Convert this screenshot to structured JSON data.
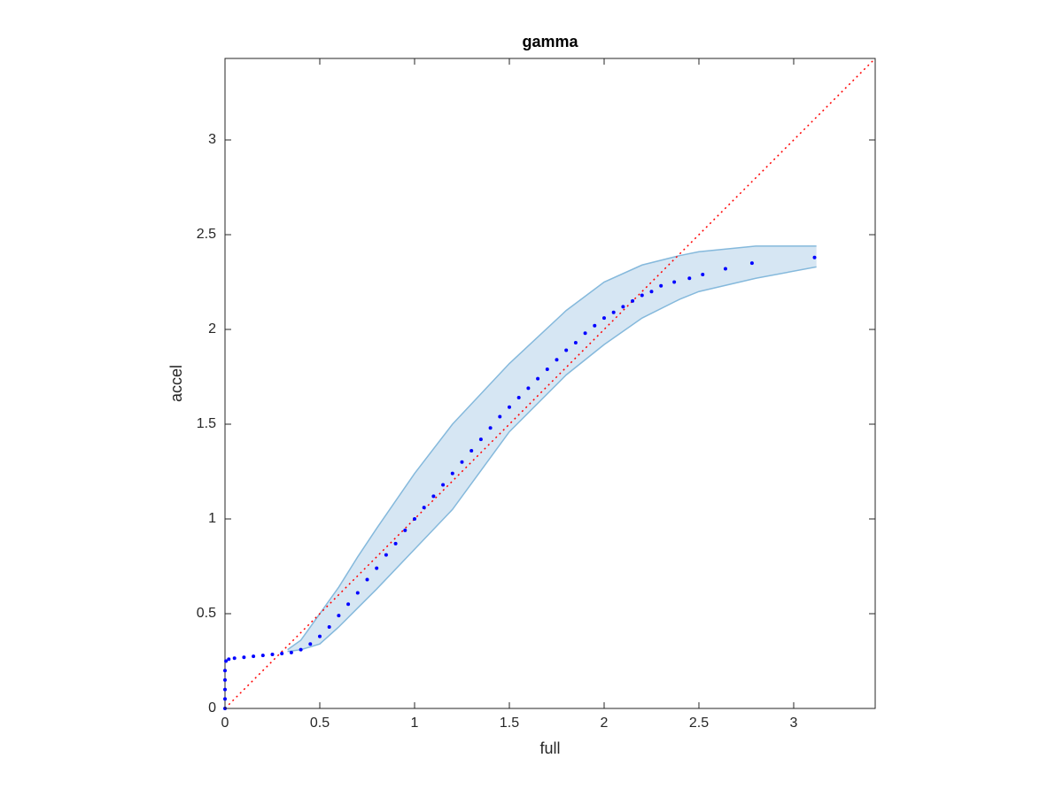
{
  "chart_data": {
    "type": "scatter",
    "title": "gamma",
    "x_label": "full",
    "y_label": "accel",
    "xlim": [
      0,
      3.43
    ],
    "ylim": [
      0,
      3.43
    ],
    "xticks": [
      0,
      0.5,
      1,
      1.5,
      2,
      2.5,
      3
    ],
    "yticks": [
      0,
      0.5,
      1,
      1.5,
      2,
      2.5,
      3
    ],
    "grid": false,
    "series": [
      {
        "color": "#0000ff",
        "x": [
          0,
          0,
          0,
          0,
          0,
          0.005,
          0.02,
          0.05,
          0.1,
          0.15,
          0.2,
          0.25,
          0.3,
          0.35,
          0.4,
          0.45,
          0.5,
          0.55,
          0.6,
          0.65,
          0.7,
          0.75,
          0.8,
          0.85,
          0.9,
          0.95,
          1.0,
          1.05,
          1.1,
          1.15,
          1.2,
          1.25,
          1.3,
          1.35,
          1.4,
          1.45,
          1.5,
          1.55,
          1.6,
          1.65,
          1.7,
          1.75,
          1.8,
          1.85,
          1.9,
          1.95,
          2.0,
          2.05,
          2.1,
          2.15,
          2.2,
          2.25,
          2.3,
          2.37,
          2.45,
          2.52,
          2.64,
          2.78,
          3.11
        ],
        "y": [
          0,
          0.05,
          0.1,
          0.15,
          0.2,
          0.25,
          0.26,
          0.265,
          0.27,
          0.275,
          0.28,
          0.285,
          0.29,
          0.295,
          0.31,
          0.34,
          0.38,
          0.43,
          0.49,
          0.55,
          0.61,
          0.68,
          0.74,
          0.81,
          0.87,
          0.94,
          1.0,
          1.06,
          1.12,
          1.18,
          1.24,
          1.3,
          1.36,
          1.42,
          1.48,
          1.54,
          1.59,
          1.64,
          1.69,
          1.74,
          1.79,
          1.84,
          1.89,
          1.93,
          1.98,
          2.02,
          2.06,
          2.09,
          2.12,
          2.15,
          2.18,
          2.2,
          2.23,
          2.25,
          2.27,
          2.29,
          2.32,
          2.35,
          2.38
        ]
      }
    ],
    "band": {
      "color": "#85b9dc",
      "fill": "#d6e6f3",
      "x": [
        0.33,
        0.4,
        0.5,
        0.6,
        0.7,
        0.8,
        1.0,
        1.2,
        1.5,
        1.8,
        2.0,
        2.2,
        2.4,
        2.5,
        2.8,
        3.12
      ],
      "upper": [
        0.31,
        0.36,
        0.5,
        0.64,
        0.8,
        0.95,
        1.24,
        1.5,
        1.82,
        2.1,
        2.25,
        2.34,
        2.39,
        2.41,
        2.44,
        2.44
      ],
      "lower": [
        0.3,
        0.31,
        0.34,
        0.43,
        0.53,
        0.63,
        0.84,
        1.05,
        1.46,
        1.76,
        1.92,
        2.06,
        2.16,
        2.2,
        2.27,
        2.33
      ]
    },
    "reference_line": {
      "color": "#ff0000",
      "x": [
        0,
        3.43
      ],
      "y": [
        0,
        3.43
      ]
    }
  }
}
